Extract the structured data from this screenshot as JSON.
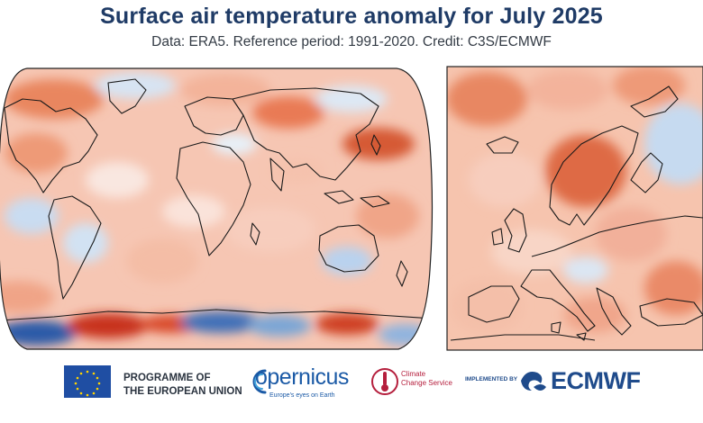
{
  "title": "Surface air temperature anomaly for July 2025",
  "subtitle": "Data: ERA5.  Reference period: 1991-2020.  Credit: C3S/ECMWF",
  "colors": {
    "title": "#1f3b66",
    "warm_strong": "#c8321e",
    "warm_mid": "#e9805e",
    "warm_light": "#f8d2c2",
    "near_zero": "#faf1ee",
    "cool_light": "#cfe0f2",
    "cool_mid": "#7aa6d6",
    "cool_strong": "#2c5aa8",
    "coastline": "#1a1a1a"
  },
  "maps": {
    "global": {
      "projection": "robinson"
    },
    "europe": {
      "projection": "regional"
    }
  },
  "logos": {
    "eu": {
      "icon": "eu-flag-icon",
      "line1": "PROGRAMME OF",
      "line2": "THE EUROPEAN UNION"
    },
    "copernicus": {
      "icon": "copernicus-logo-icon",
      "wordmark": "opernicus",
      "tagline": "Europe's eyes on Earth"
    },
    "c3s": {
      "icon": "c3s-thermometer-icon",
      "line1": "Climate",
      "line2": "Change Service"
    },
    "ecmwf": {
      "prefix": "IMPLEMENTED BY",
      "icon": "ecmwf-wave-icon",
      "wordmark": "ECMWF"
    }
  }
}
